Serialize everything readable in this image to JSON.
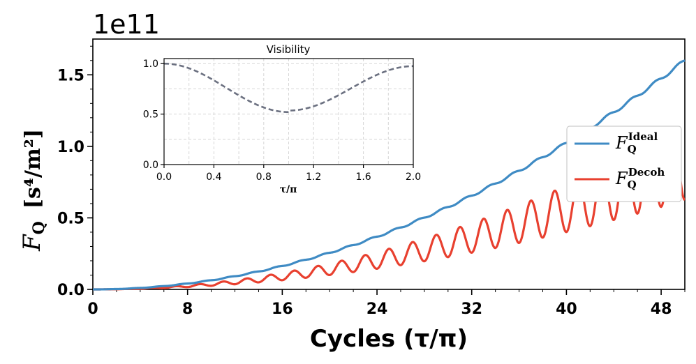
{
  "chart_data": [
    {
      "type": "line",
      "title": "",
      "offset_text": "1e11",
      "xlabel": "Cycles  (τ/π)",
      "ylabel_symbol": "F",
      "ylabel_sub": "Q",
      "ylabel_units": "[s⁴/m²]",
      "xlim": [
        0,
        50
      ],
      "ylim": [
        0,
        1.75
      ],
      "xticks": [
        0,
        8,
        16,
        24,
        32,
        40,
        48
      ],
      "xtick_labels": [
        "0",
        "8",
        "16",
        "24",
        "32",
        "40",
        "48"
      ],
      "yticks": [
        0,
        0.5,
        1.0,
        1.5
      ],
      "ytick_labels": [
        "0.0",
        "0.5",
        "1.0",
        "1.5"
      ],
      "legend_position": "center-right",
      "series": [
        {
          "name": "F_Q^Ideal",
          "legend_symbol": "F",
          "legend_sub": "Q",
          "legend_sup": "Ideal",
          "color": "#3f8bc4",
          "model": "ideal",
          "max_value": 1.6,
          "x": [
            0,
            8,
            16,
            24,
            32,
            40,
            48,
            50
          ],
          "values": [
            0,
            0.04,
            0.164,
            0.369,
            0.655,
            1.024,
            1.475,
            1.6
          ]
        },
        {
          "name": "F_Q^Decoh",
          "legend_symbol": "F",
          "legend_sub": "Q",
          "legend_sup": "Decoh",
          "color": "#e8402f",
          "model": "decoh",
          "x": [
            0,
            8,
            16,
            24,
            32,
            40,
            48,
            50
          ],
          "values": [
            0,
            0.03,
            0.12,
            0.23,
            0.36,
            0.47,
            0.57,
            0.6
          ]
        }
      ]
    },
    {
      "type": "line",
      "title": "Visibility",
      "xlabel": "τ/π",
      "xlim": [
        0,
        2.0
      ],
      "ylim": [
        0,
        1.05
      ],
      "xticks": [
        0,
        0.4,
        0.8,
        1.2,
        1.6,
        2.0
      ],
      "xtick_labels": [
        "0.0",
        "0.4",
        "0.8",
        "1.2",
        "1.6",
        "2.0"
      ],
      "yticks": [
        0,
        0.5,
        1.0
      ],
      "ytick_labels": [
        "0.0",
        "0.5",
        "1.0"
      ],
      "grid": true,
      "series": [
        {
          "name": "Visibility",
          "color": "#6b7080",
          "style": "dashed",
          "x": [
            0,
            0.4,
            0.8,
            1.0,
            1.2,
            1.6,
            2.0
          ],
          "values": [
            1.0,
            0.85,
            0.56,
            0.52,
            0.56,
            0.85,
            0.97
          ]
        }
      ]
    }
  ]
}
